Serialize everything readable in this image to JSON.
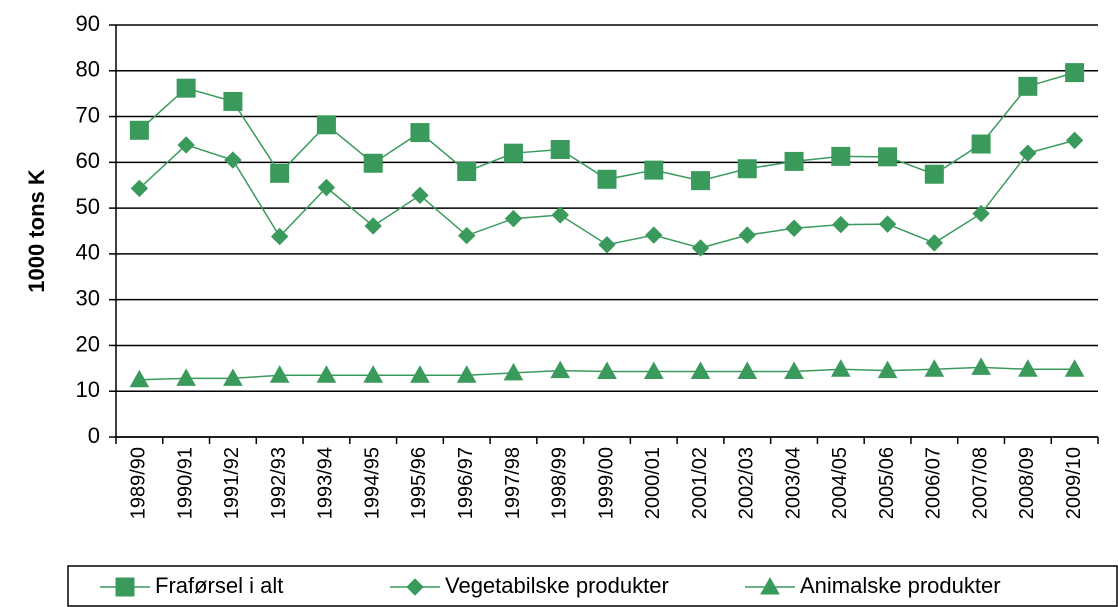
{
  "chart_data": {
    "type": "line",
    "y_label": "1000 tons K",
    "categories": [
      "1989/90",
      "1990/91",
      "1991/92",
      "1992/93",
      "1993/94",
      "1994/95",
      "1995/96",
      "1996/97",
      "1997/98",
      "1998/99",
      "1999/00",
      "2000/01",
      "2001/02",
      "2002/03",
      "2003/04",
      "2004/05",
      "2005/06",
      "2006/07",
      "2007/08",
      "2008/09",
      "2009/10"
    ],
    "series": [
      {
        "name": "Fraførsel i alt",
        "color": "#3a9a5c",
        "marker": "square",
        "values": [
          67,
          76.2,
          73.3,
          57.6,
          68.2,
          59.8,
          66.5,
          58,
          62,
          62.8,
          56.3,
          58.3,
          56,
          58.6,
          60.2,
          61.3,
          61.2,
          57.4,
          64,
          76.6,
          79.6
        ]
      },
      {
        "name": "Vegetabilske produkter",
        "color": "#3a9a5c",
        "marker": "diamond",
        "values": [
          54.3,
          63.8,
          60.5,
          43.8,
          54.5,
          46.1,
          52.8,
          44,
          47.7,
          48.5,
          42,
          44.1,
          41.3,
          44.1,
          45.6,
          46.4,
          46.5,
          42.4,
          48.8,
          62,
          64.8
        ]
      },
      {
        "name": "Animalske produkter",
        "color": "#3a9a5c",
        "marker": "triangle",
        "values": [
          12.5,
          12.8,
          12.8,
          13.5,
          13.5,
          13.5,
          13.5,
          13.5,
          14,
          14.5,
          14.3,
          14.3,
          14.3,
          14.3,
          14.3,
          14.8,
          14.5,
          14.8,
          15.2,
          14.8,
          14.8
        ]
      }
    ],
    "ylim": [
      0,
      90
    ],
    "yticks": [
      0,
      10,
      20,
      30,
      40,
      50,
      60,
      70,
      80,
      90
    ],
    "grid": true,
    "legend": "bottom"
  }
}
